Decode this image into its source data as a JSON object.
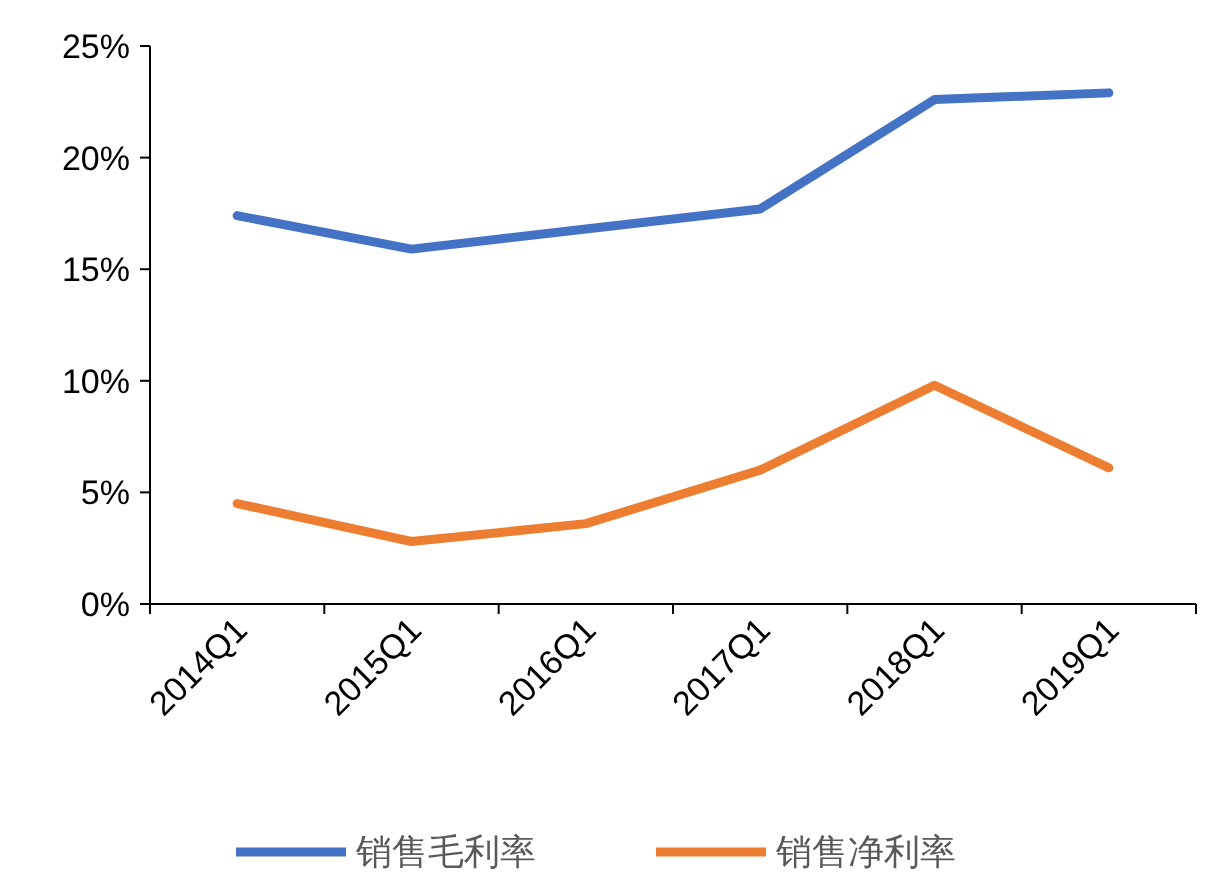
{
  "chart_data": {
    "type": "line",
    "categories": [
      "2014Q1",
      "2015Q1",
      "2016Q1",
      "2017Q1",
      "2018Q1",
      "2019Q1"
    ],
    "series": [
      {
        "name": "销售毛利率",
        "color": "#4472c4",
        "values": [
          17.4,
          15.9,
          16.8,
          17.7,
          22.6,
          22.9
        ]
      },
      {
        "name": "销售净利率",
        "color": "#ed7d31",
        "values": [
          4.5,
          2.8,
          3.6,
          6.0,
          9.8,
          6.1
        ]
      }
    ],
    "ylim": [
      0,
      25
    ],
    "yticks": [
      {
        "value": 0,
        "label": "0%"
      },
      {
        "value": 5,
        "label": "5%"
      },
      {
        "value": 10,
        "label": "10%"
      },
      {
        "value": 15,
        "label": "15%"
      },
      {
        "value": 20,
        "label": "20%"
      },
      {
        "value": 25,
        "label": "25%"
      }
    ],
    "legend": "bottom"
  }
}
